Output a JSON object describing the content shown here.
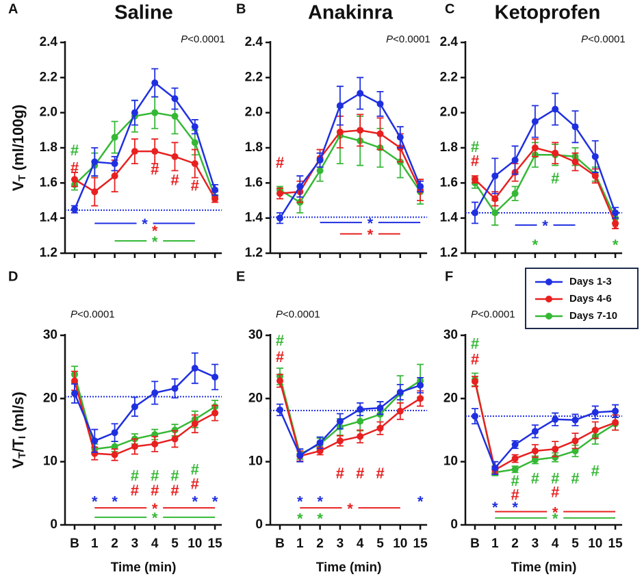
{
  "chart_data": [
    {
      "type": "line",
      "letter": "A",
      "title": "Saline",
      "p_label": {
        "italic": "P",
        "rest": "<0.0001"
      },
      "y_label": [
        {
          "text": "V"
        },
        {
          "text": "T",
          "sub": true
        },
        {
          "text": " (ml/100g)"
        }
      ],
      "ylim": [
        1.2,
        2.4
      ],
      "yticks": [
        1.2,
        1.4,
        1.6,
        1.8,
        {
          "value": 2,
          "label": "2.0"
        },
        2.2,
        2.4
      ],
      "reference": 1.445,
      "series": [
        {
          "name": "Days 1-3",
          "color": "#1f2fe0",
          "values": [
            1.45,
            1.72,
            1.71,
            2.0,
            2.17,
            2.08,
            1.92,
            1.56
          ],
          "errors": [
            0.02,
            0.08,
            0.04,
            0.07,
            0.08,
            0.06,
            0.04,
            0.03
          ]
        },
        {
          "name": "Days 4-6",
          "color": "#e82020",
          "values": [
            1.62,
            1.55,
            1.64,
            1.78,
            1.78,
            1.75,
            1.71,
            1.51
          ],
          "errors": [
            0.04,
            0.08,
            0.09,
            0.07,
            0.07,
            0.08,
            0.08,
            0.02
          ]
        },
        {
          "name": "Days 7-10",
          "color": "#35b835",
          "values": [
            1.59,
            1.7,
            1.86,
            1.98,
            2.0,
            1.98,
            1.83,
            1.52
          ],
          "errors": [
            0.03,
            0.07,
            0.09,
            0.09,
            0.09,
            0.1,
            0.07,
            0.03
          ]
        }
      ],
      "annotations": [
        {
          "text": "#",
          "color": "#35b835",
          "x": 0,
          "y": 1.78
        },
        {
          "text": "#",
          "color": "#e82020",
          "x": 0,
          "y": 1.68
        },
        {
          "text": "#",
          "color": "#e82020",
          "x": 4,
          "y": 1.67
        },
        {
          "text": "#",
          "color": "#e82020",
          "x": 5,
          "y": 1.61
        },
        {
          "text": "#",
          "color": "#e82020",
          "x": 6,
          "y": 1.58
        },
        {
          "text": "*",
          "color": "#e82020",
          "x": 4,
          "y": 1.32
        }
      ],
      "bars": [
        {
          "color": "#1f2fe0",
          "y": 1.37,
          "from": 1,
          "to": 6,
          "star": "*"
        },
        {
          "color": "#35b835",
          "y": 1.27,
          "from": 2,
          "to": 6,
          "star": "*"
        }
      ]
    },
    {
      "type": "line",
      "letter": "B",
      "title": "Anakinra",
      "p_label": {
        "italic": "P",
        "rest": "<0.0001"
      },
      "ylim": [
        1.2,
        2.4
      ],
      "yticks": [
        1.2,
        1.4,
        1.6,
        1.8,
        {
          "value": 2,
          "label": "2.0"
        },
        2.2,
        2.4
      ],
      "reference": 1.405,
      "series": [
        {
          "name": "Days 1-3",
          "color": "#1f2fe0",
          "values": [
            1.4,
            1.58,
            1.73,
            2.04,
            2.11,
            2.05,
            1.86,
            1.58
          ],
          "errors": [
            0.03,
            0.06,
            0.04,
            0.11,
            0.09,
            0.07,
            0.06,
            0.03
          ]
        },
        {
          "name": "Days 4-6",
          "color": "#e82020",
          "values": [
            1.54,
            1.55,
            1.74,
            1.89,
            1.9,
            1.88,
            1.8,
            1.56
          ],
          "errors": [
            0.03,
            0.06,
            0.05,
            0.09,
            0.09,
            0.09,
            0.08,
            0.06
          ]
        },
        {
          "name": "Days 7-10",
          "color": "#35b835",
          "values": [
            1.56,
            1.49,
            1.67,
            1.87,
            1.84,
            1.8,
            1.72,
            1.55
          ],
          "errors": [
            0.02,
            0.06,
            0.06,
            0.16,
            0.14,
            0.11,
            0.09,
            0.07
          ]
        }
      ],
      "annotations": [
        {
          "text": "#",
          "color": "#e82020",
          "x": 0,
          "y": 1.71
        }
      ],
      "bars": [
        {
          "color": "#1f2fe0",
          "y": 1.375,
          "from": 2,
          "to": 7,
          "star": "*"
        },
        {
          "color": "#e82020",
          "y": 1.31,
          "from": 3,
          "to": 6,
          "star": "*"
        }
      ]
    },
    {
      "type": "line",
      "letter": "C",
      "title": "Ketoprofen",
      "p_label": {
        "italic": "P",
        "rest": "<0.0001"
      },
      "ylim": [
        1.2,
        2.4
      ],
      "yticks": [
        1.2,
        1.4,
        1.6,
        1.8,
        {
          "value": 2,
          "label": "2.0"
        },
        2.2,
        2.4
      ],
      "reference": 1.43,
      "series": [
        {
          "name": "Days 1-3",
          "color": "#1f2fe0",
          "values": [
            1.43,
            1.64,
            1.73,
            1.95,
            2.02,
            1.92,
            1.75,
            1.43
          ],
          "errors": [
            0.06,
            0.1,
            0.08,
            0.09,
            0.09,
            0.09,
            0.09,
            0.03
          ]
        },
        {
          "name": "Days 4-6",
          "color": "#e82020",
          "values": [
            1.62,
            1.51,
            1.66,
            1.8,
            1.77,
            1.72,
            1.64,
            1.37
          ],
          "errors": [
            0.02,
            0.04,
            0.05,
            0.05,
            0.06,
            0.05,
            0.04,
            0.03
          ]
        },
        {
          "name": "Days 7-10",
          "color": "#35b835",
          "values": [
            1.6,
            1.43,
            1.54,
            1.76,
            1.76,
            1.75,
            1.65,
            1.4
          ],
          "errors": [
            0.03,
            0.07,
            0.04,
            0.07,
            0.06,
            0.05,
            0.04,
            0.03
          ]
        }
      ],
      "annotations": [
        {
          "text": "#",
          "color": "#35b835",
          "x": 0,
          "y": 1.8
        },
        {
          "text": "#",
          "color": "#e82020",
          "x": 0,
          "y": 1.72
        },
        {
          "text": "#",
          "color": "#35b835",
          "x": 4,
          "y": 1.62
        },
        {
          "text": "*",
          "color": "#35b835",
          "x": 3,
          "y": 1.24
        },
        {
          "text": "*",
          "color": "#e82020",
          "x": 7,
          "y": 1.33
        },
        {
          "text": "*",
          "color": "#35b835",
          "x": 7,
          "y": 1.24
        }
      ],
      "bars": [
        {
          "color": "#1f2fe0",
          "y": 1.36,
          "from": 2,
          "to": 5,
          "star": "*"
        }
      ]
    },
    {
      "type": "line",
      "letter": "D",
      "p_label": {
        "italic": "P",
        "rest": "<0.0001"
      },
      "y_label": [
        {
          "text": "V"
        },
        {
          "text": "T",
          "sub": true
        },
        {
          "text": "/T"
        },
        {
          "text": "I",
          "sub": true
        },
        {
          "text": " (ml/s)"
        }
      ],
      "x_label": "Time (min)",
      "categories": [
        "B",
        "1",
        "2",
        "3",
        "4",
        "5",
        "10",
        "15"
      ],
      "ylim": [
        0,
        30
      ],
      "yticks": [
        0,
        10,
        20,
        30
      ],
      "reference": 20.3,
      "series": [
        {
          "name": "Days 1-3",
          "color": "#1f2fe0",
          "values": [
            20.8,
            13.3,
            14.6,
            18.7,
            20.9,
            21.6,
            24.8,
            23.4
          ],
          "errors": [
            1.5,
            1.8,
            1.4,
            1.5,
            1.8,
            1.5,
            2.4,
            2.0
          ]
        },
        {
          "name": "Days 4-6",
          "color": "#e82020",
          "values": [
            22.8,
            11.3,
            11.1,
            12.4,
            12.8,
            13.6,
            16.0,
            17.7
          ],
          "errors": [
            1.5,
            1.0,
            0.9,
            1.2,
            1.2,
            1.3,
            1.4,
            1.2
          ]
        },
        {
          "name": "Days 7-10",
          "color": "#35b835",
          "values": [
            23.8,
            12.0,
            12.4,
            13.6,
            14.3,
            15.0,
            16.7,
            18.7
          ],
          "errors": [
            1.3,
            0.8,
            0.8,
            0.8,
            0.8,
            0.9,
            1.3,
            1.0
          ]
        }
      ],
      "annotations": [
        {
          "text": "#",
          "color": "#35b835",
          "x": 3,
          "y": 7.6
        },
        {
          "text": "#",
          "color": "#e82020",
          "x": 3,
          "y": 5.3
        },
        {
          "text": "#",
          "color": "#35b835",
          "x": 4,
          "y": 7.6
        },
        {
          "text": "#",
          "color": "#e82020",
          "x": 4,
          "y": 5.3
        },
        {
          "text": "#",
          "color": "#35b835",
          "x": 5,
          "y": 7.6
        },
        {
          "text": "#",
          "color": "#e82020",
          "x": 5,
          "y": 5.3
        },
        {
          "text": "#",
          "color": "#35b835",
          "x": 6,
          "y": 8.6
        },
        {
          "text": "#",
          "color": "#e82020",
          "x": 6,
          "y": 6.3
        },
        {
          "text": "*",
          "color": "#1f2fe0",
          "x": 1,
          "y": 3.5
        },
        {
          "text": "*",
          "color": "#1f2fe0",
          "x": 2,
          "y": 3.5
        },
        {
          "text": "*",
          "color": "#1f2fe0",
          "x": 6,
          "y": 3.5
        },
        {
          "text": "*",
          "color": "#1f2fe0",
          "x": 7,
          "y": 3.5
        }
      ],
      "bars": [
        {
          "color": "#e82020",
          "y": 2.7,
          "from": 1,
          "to": 7,
          "star": "*"
        },
        {
          "color": "#35b835",
          "y": 1.2,
          "from": 1,
          "to": 7,
          "star": "*"
        }
      ]
    },
    {
      "type": "line",
      "letter": "E",
      "p_label": {
        "italic": "P",
        "rest": "<0.0001"
      },
      "x_label": "Time (min)",
      "categories": [
        "B",
        "1",
        "2",
        "3",
        "4",
        "5",
        "10",
        "15"
      ],
      "ylim": [
        0,
        30
      ],
      "yticks": [
        0,
        10,
        20,
        30
      ],
      "reference": 18.1,
      "series": [
        {
          "name": "Days 1-3",
          "color": "#1f2fe0",
          "values": [
            18.2,
            11.0,
            13.0,
            16.4,
            18.3,
            18.5,
            21.0,
            22.1
          ],
          "errors": [
            0.9,
            1.0,
            0.9,
            1.2,
            1.0,
            1.0,
            1.2,
            1.2
          ]
        },
        {
          "name": "Days 4-6",
          "color": "#e82020",
          "values": [
            22.8,
            10.9,
            11.7,
            13.3,
            14.0,
            15.3,
            18.0,
            20.0
          ],
          "errors": [
            1.0,
            0.8,
            0.6,
            0.8,
            1.0,
            1.0,
            1.3,
            1.2
          ]
        },
        {
          "name": "Days 7-10",
          "color": "#35b835",
          "values": [
            23.5,
            11.2,
            12.8,
            15.5,
            16.4,
            17.5,
            20.8,
            22.8
          ],
          "errors": [
            1.3,
            0.8,
            0.9,
            1.3,
            1.5,
            2.0,
            2.8,
            2.6
          ]
        }
      ],
      "annotations": [
        {
          "text": "#",
          "color": "#35b835",
          "x": 0,
          "y": 29.0
        },
        {
          "text": "#",
          "color": "#e82020",
          "x": 0,
          "y": 26.4
        },
        {
          "text": "#",
          "color": "#e82020",
          "x": 3,
          "y": 8.0
        },
        {
          "text": "#",
          "color": "#e82020",
          "x": 4,
          "y": 8.0
        },
        {
          "text": "#",
          "color": "#e82020",
          "x": 5,
          "y": 8.0
        },
        {
          "text": "*",
          "color": "#1f2fe0",
          "x": 1,
          "y": 3.5
        },
        {
          "text": "*",
          "color": "#1f2fe0",
          "x": 2,
          "y": 3.5
        },
        {
          "text": "*",
          "color": "#1f2fe0",
          "x": 7,
          "y": 3.5
        },
        {
          "text": "*",
          "color": "#35b835",
          "x": 1,
          "y": 0.8
        },
        {
          "text": "*",
          "color": "#35b835",
          "x": 2,
          "y": 0.8
        }
      ],
      "bars": [
        {
          "color": "#e82020",
          "y": 2.7,
          "from": 1,
          "to": 6,
          "star": "*"
        }
      ]
    },
    {
      "type": "line",
      "letter": "F",
      "p_label": {
        "italic": "P",
        "rest": "<0.0001"
      },
      "x_label": "Time (min)",
      "categories": [
        "B",
        "1",
        "2",
        "3",
        "4",
        "5",
        "10",
        "15"
      ],
      "ylim": [
        0,
        30
      ],
      "yticks": [
        0,
        10,
        20,
        30
      ],
      "reference": 17.2,
      "series": [
        {
          "name": "Days 1-3",
          "color": "#1f2fe0",
          "values": [
            17.2,
            9.0,
            12.7,
            14.8,
            16.7,
            16.6,
            17.8,
            18.0
          ],
          "errors": [
            1.2,
            1.0,
            0.6,
            1.0,
            1.0,
            0.9,
            1.0,
            1.0
          ]
        },
        {
          "name": "Days 4-6",
          "color": "#e82020",
          "values": [
            22.7,
            8.7,
            10.5,
            11.7,
            12.0,
            13.3,
            15.0,
            16.2
          ],
          "errors": [
            0.8,
            0.6,
            0.6,
            1.0,
            1.2,
            1.2,
            1.3,
            1.2
          ]
        },
        {
          "name": "Days 7-10",
          "color": "#35b835",
          "values": [
            23.0,
            8.3,
            8.8,
            10.3,
            10.7,
            11.7,
            14.0,
            16.0
          ],
          "errors": [
            1.0,
            0.5,
            0.5,
            0.6,
            0.7,
            0.9,
            1.2,
            1.0
          ]
        }
      ],
      "annotations": [
        {
          "text": "#",
          "color": "#35b835",
          "x": 0,
          "y": 28.5
        },
        {
          "text": "#",
          "color": "#e82020",
          "x": 0,
          "y": 26.0
        },
        {
          "text": "#",
          "color": "#35b835",
          "x": 2,
          "y": 6.8
        },
        {
          "text": "#",
          "color": "#e82020",
          "x": 2,
          "y": 4.6
        },
        {
          "text": "#",
          "color": "#35b835",
          "x": 3,
          "y": 7.2
        },
        {
          "text": "#",
          "color": "#35b835",
          "x": 4,
          "y": 7.2
        },
        {
          "text": "#",
          "color": "#e82020",
          "x": 4,
          "y": 5.0
        },
        {
          "text": "#",
          "color": "#35b835",
          "x": 5,
          "y": 7.2
        },
        {
          "text": "#",
          "color": "#35b835",
          "x": 6,
          "y": 8.4
        },
        {
          "text": "*",
          "color": "#1f2fe0",
          "x": 1,
          "y": 2.6
        },
        {
          "text": "*",
          "color": "#1f2fe0",
          "x": 2,
          "y": 2.6
        }
      ],
      "bars": [
        {
          "color": "#e82020",
          "y": 2.1,
          "from": 1,
          "to": 7,
          "star": "*"
        },
        {
          "color": "#35b835",
          "y": 1.1,
          "from": 1,
          "to": 7,
          "star": "*"
        }
      ]
    }
  ]
}
